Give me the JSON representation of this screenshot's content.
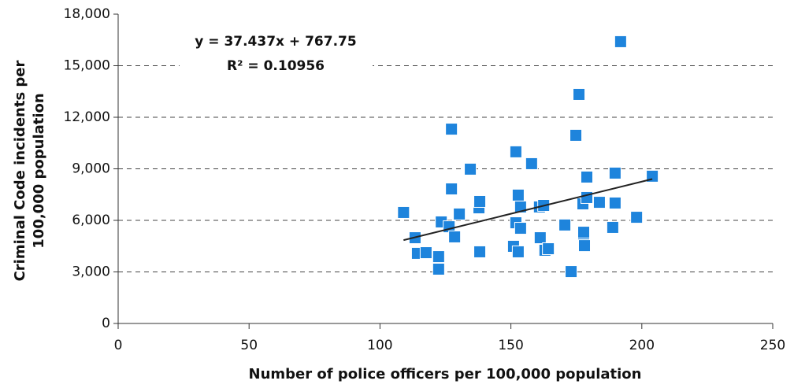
{
  "chart_data": {
    "type": "scatter",
    "x_label": "Number of police officers per 100,000 population",
    "y_label": [
      "Criminal Code incidents per",
      "100,000 population"
    ],
    "annotations": [
      "y = 37.437x + 767.75",
      "R² = 0.10956"
    ],
    "xlim": [
      0,
      250
    ],
    "xticks": [
      0,
      50,
      100,
      150,
      200,
      250
    ],
    "ylim": [
      0,
      18000
    ],
    "yticks": [
      {
        "value": 0,
        "label": "0"
      },
      {
        "value": 3000,
        "label": "3,000"
      },
      {
        "value": 6000,
        "label": "6,000"
      },
      {
        "value": 9000,
        "label": "9,000"
      },
      {
        "value": 12000,
        "label": "12,000"
      },
      {
        "value": 15000,
        "label": "15,000"
      },
      {
        "value": 18000,
        "label": "18,000"
      }
    ],
    "grid": true,
    "series": [
      {
        "color": "#1e84dc",
        "x": [
          109,
          113.4,
          114.3,
          117.6,
          122.4,
          122.4,
          123.4,
          126.4,
          127.3,
          127.3,
          128.5,
          130.3,
          134.5,
          137.8,
          138.1,
          138.1,
          151,
          151.9,
          151.9,
          152.8,
          152.8,
          153.7,
          153.7,
          157.9,
          160.9,
          161.2,
          162.5,
          163,
          164.3,
          170.6,
          173,
          174.8,
          176,
          177.5,
          177.8,
          177.8,
          178.1,
          179,
          179,
          183.8,
          188.9,
          189.8,
          189.8,
          191.9,
          198,
          204
        ],
        "values": [
          6460,
          4990,
          4080,
          4120,
          3890,
          3160,
          5910,
          5630,
          7830,
          11310,
          5040,
          6370,
          8980,
          6730,
          7100,
          4170,
          4490,
          9990,
          5860,
          4170,
          7470,
          6780,
          5540,
          9300,
          6780,
          4990,
          6870,
          4260,
          4350,
          5730,
          3020,
          10950,
          13330,
          6960,
          5310,
          4630,
          4530,
          8520,
          7330,
          7050,
          5590,
          8750,
          7010,
          16400,
          6180,
          8570
        ]
      }
    ],
    "trendline": {
      "color": "#222222",
      "x": [
        109,
        204
      ],
      "values": [
        4849,
        8405
      ]
    }
  }
}
